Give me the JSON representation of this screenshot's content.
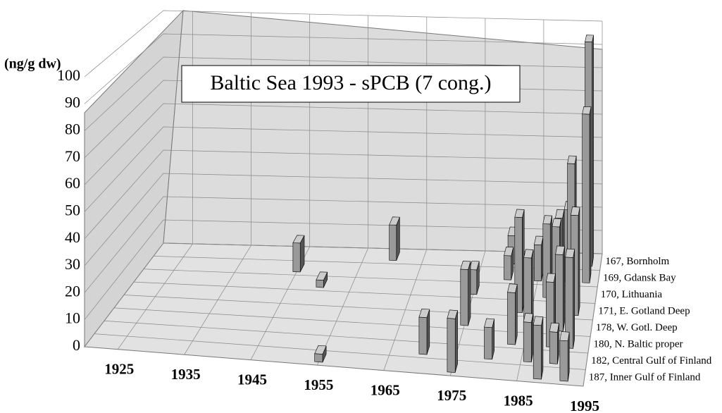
{
  "chart_data": {
    "type": "bar3d",
    "title": "Baltic Sea 1993 - sPCB (7 cong.)",
    "y_label": "(ng/g dw)",
    "xlim": [
      1920,
      1995
    ],
    "xticks": [
      1925,
      1935,
      1945,
      1955,
      1965,
      1975,
      1985,
      1995
    ],
    "ylim": [
      0,
      100
    ],
    "yticks": [
      0,
      10,
      20,
      30,
      40,
      50,
      60,
      70,
      80,
      90,
      100
    ],
    "grid": true,
    "color": "#9a9a9a",
    "series": [
      {
        "name": "167, Bornholm",
        "x": [
          1960,
          1980,
          1988,
          1993
        ],
        "values": [
          15,
          12,
          20,
          95
        ]
      },
      {
        "name": "169, Gdansk Bay",
        "x": [
          1945,
          1980,
          1985,
          1990,
          1993
        ],
        "values": [
          12,
          10,
          15,
          30,
          70
        ]
      },
      {
        "name": "170, Lithuania",
        "x": [
          1950,
          1975,
          1987,
          1991
        ],
        "values": [
          3,
          10,
          30,
          55
        ]
      },
      {
        "name": "171, E. Gotland Deep",
        "x": [
          1983,
          1989,
          1992
        ],
        "values": [
          38,
          35,
          40
        ]
      },
      {
        "name": "178, W. Gotl. Deep",
        "x": [
          1975,
          1985,
          1990
        ],
        "values": [
          22,
          28,
          30
        ]
      },
      {
        "name": "180, N. Baltic proper",
        "x": [
          1983,
          1989,
          1992
        ],
        "values": [
          20,
          25,
          35
        ]
      },
      {
        "name": "182, Central Gulf of Finland",
        "x": [
          1970,
          1980,
          1986,
          1990
        ],
        "values": [
          14,
          12,
          15,
          12
        ]
      },
      {
        "name": "187, Inner Gulf of Finland",
        "x": [
          1955,
          1975,
          1988,
          1992
        ],
        "values": [
          3,
          20,
          20,
          15
        ]
      }
    ]
  }
}
